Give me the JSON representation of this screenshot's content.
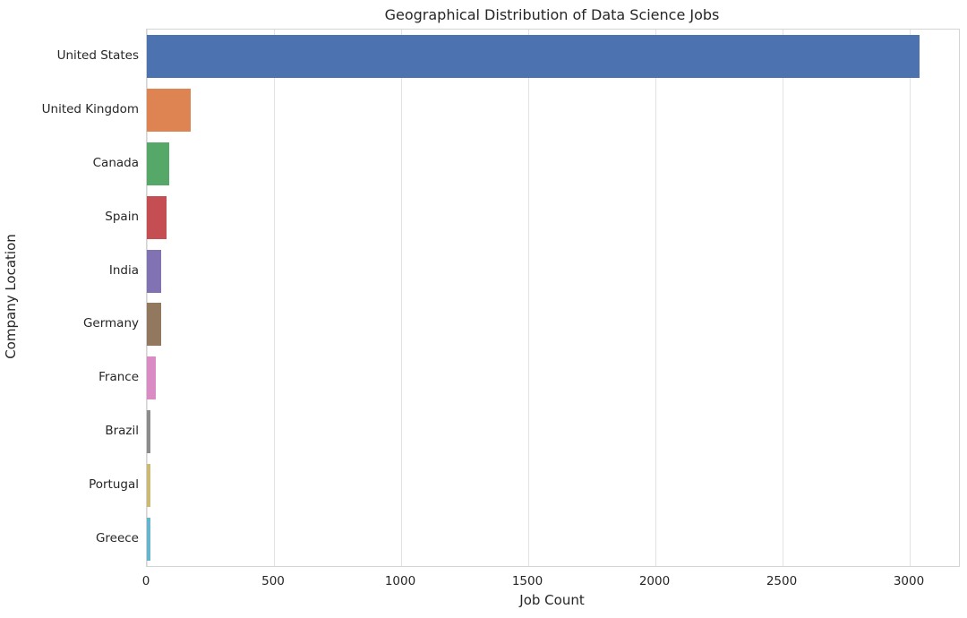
{
  "chart_data": {
    "type": "bar",
    "orientation": "horizontal",
    "title": "Geographical Distribution of Data Science Jobs",
    "xlabel": "Job Count",
    "ylabel": "Company Location",
    "categories": [
      "United States",
      "United Kingdom",
      "Canada",
      "Spain",
      "India",
      "Germany",
      "France",
      "Brazil",
      "Portugal",
      "Greece"
    ],
    "values": [
      3040,
      172,
      87,
      77,
      58,
      56,
      34,
      15,
      14,
      14
    ],
    "bar_colors": [
      "#4c72b0",
      "#dd8452",
      "#55a868",
      "#c44e52",
      "#8172b3",
      "#937860",
      "#da8bc3",
      "#8c8c8c",
      "#ccb974",
      "#64b5cd"
    ],
    "x_ticks": [
      0,
      500,
      1000,
      1500,
      2000,
      2500,
      3000
    ],
    "xlim": [
      0,
      3194
    ],
    "grid": true,
    "legend": false
  },
  "style_colors": {
    "background": "#ffffff",
    "grid": "#e2e2e2",
    "spine": "#d4d4d4",
    "text": "#262626"
  }
}
